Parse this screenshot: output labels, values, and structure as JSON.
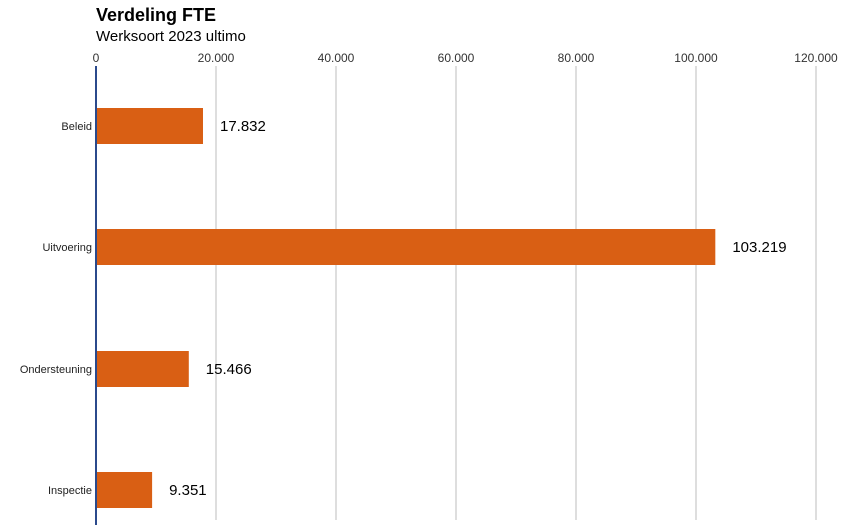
{
  "chart_data": {
    "type": "bar",
    "orientation": "horizontal",
    "title": "Verdeling FTE",
    "subtitle": "Werksoort 2023 ultimo",
    "categories": [
      "Beleid",
      "Uitvoering",
      "Ondersteuning",
      "Inspectie"
    ],
    "values": [
      17832,
      103219,
      15466,
      9351
    ],
    "value_labels": [
      "17.832",
      "103.219",
      "15.466",
      "9.351"
    ],
    "xlim": [
      0,
      120000
    ],
    "x_ticks": [
      0,
      20000,
      40000,
      60000,
      80000,
      100000,
      120000
    ],
    "x_tick_labels": [
      "0",
      "20.000",
      "40.000",
      "60.000",
      "80.000",
      "100.000",
      "120.000"
    ],
    "grid": true,
    "bar_color": "#d95f14",
    "axis_color": "#2b4a8c",
    "grid_color": "#c8c8c8"
  }
}
